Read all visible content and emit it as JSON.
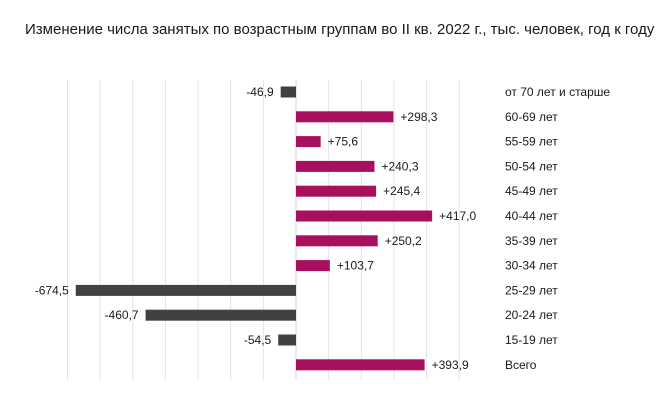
{
  "chart_title": "Изменение числа занятых по возрастным группам во II кв. 2022 г., тыс. человек, год к году",
  "chart_data": {
    "type": "bar",
    "orientation": "horizontal",
    "title": "Изменение числа занятых по возрастным группам во II кв. 2022 г., тыс. человек, год к году",
    "categories": [
      "от 70 лет и старше",
      "60-69 лет",
      "55-59 лет",
      "50-54 лет",
      "45-49 лет",
      "40-44 лет",
      "35-39 лет",
      "30-34 лет",
      "25-29 лет",
      "20-24 лет",
      "15-19 лет",
      "Всего"
    ],
    "values": [
      -46.9,
      298.3,
      75.6,
      240.3,
      245.4,
      417.0,
      250.2,
      103.7,
      -674.5,
      -460.7,
      -54.5,
      393.9
    ],
    "value_labels": [
      "-46,9",
      "+298,3",
      "+75,6",
      "+240,3",
      "+245,4",
      "+417,0",
      "+250,2",
      "+103,7",
      "-674,5",
      "-460,7",
      "-54,5",
      "+393,9"
    ],
    "xlim": [
      -800,
      600
    ],
    "grid": true,
    "colors": {
      "positive": "#a8105e",
      "negative": "#414141",
      "grid": "#e3e3e3"
    }
  }
}
